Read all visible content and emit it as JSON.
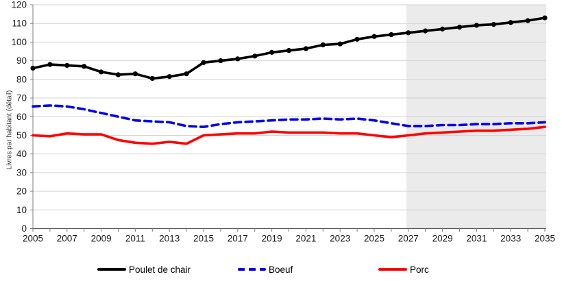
{
  "chart_data": {
    "type": "line",
    "title": "",
    "xlabel": "",
    "ylabel": "Livres par habitant (détail)",
    "ylim": [
      0,
      120
    ],
    "y_ticks": [
      0,
      10,
      20,
      30,
      40,
      50,
      60,
      70,
      80,
      90,
      100,
      110,
      120
    ],
    "x": [
      2005,
      2006,
      2007,
      2008,
      2009,
      2010,
      2011,
      2012,
      2013,
      2014,
      2015,
      2016,
      2017,
      2018,
      2019,
      2020,
      2021,
      2022,
      2023,
      2024,
      2025,
      2026,
      2027,
      2028,
      2029,
      2030,
      2031,
      2032,
      2033,
      2034,
      2035
    ],
    "x_tick_labels": [
      "2005",
      "2007",
      "2009",
      "2011",
      "2013",
      "2015",
      "2017",
      "2019",
      "2021",
      "2023",
      "2025",
      "2027",
      "2029",
      "2031",
      "2033",
      "2035"
    ],
    "grid": "horizontal",
    "legend_position": "bottom",
    "forecast_region": {
      "start_year": 2027,
      "end_year": 2035,
      "color": "#ebebeb"
    },
    "series": [
      {
        "name": "Poulet de chair",
        "color": "#000000",
        "style": "solid",
        "markers": true,
        "values": [
          86,
          88,
          87.5,
          87,
          84,
          82.5,
          83,
          80.5,
          81.5,
          83,
          89,
          90,
          91,
          92.5,
          94.5,
          95.5,
          96.5,
          98.5,
          99,
          101.5,
          103,
          104,
          105,
          106,
          107,
          108,
          109,
          109.5,
          110.5,
          111.5,
          113
        ]
      },
      {
        "name": "Boeuf",
        "color": "#0000ee",
        "style": "dashed",
        "markers": false,
        "values": [
          65.5,
          66,
          65.5,
          64,
          62,
          60,
          58,
          57.5,
          57,
          55,
          54.5,
          56,
          57,
          57.5,
          58,
          58.5,
          58.5,
          59,
          58.5,
          59,
          58,
          56.5,
          55,
          55,
          55.5,
          55.5,
          56,
          56,
          56.5,
          56.5,
          57
        ]
      },
      {
        "name": "Porc",
        "color": "#fe0000",
        "style": "solid",
        "markers": false,
        "values": [
          50,
          49.5,
          51,
          50.5,
          50.5,
          47.5,
          46,
          45.5,
          46.5,
          45.5,
          50,
          50.5,
          51,
          51,
          52,
          51.5,
          51.5,
          51.5,
          51,
          51,
          50,
          49,
          50,
          51,
          51.5,
          52,
          52.5,
          52.5,
          53,
          53.5,
          54.5
        ]
      }
    ],
    "axis_colors": {
      "gridline": "#d3d3d3",
      "axis_line": "#7f7f7f",
      "tick_text": "#1a1a1a"
    }
  }
}
